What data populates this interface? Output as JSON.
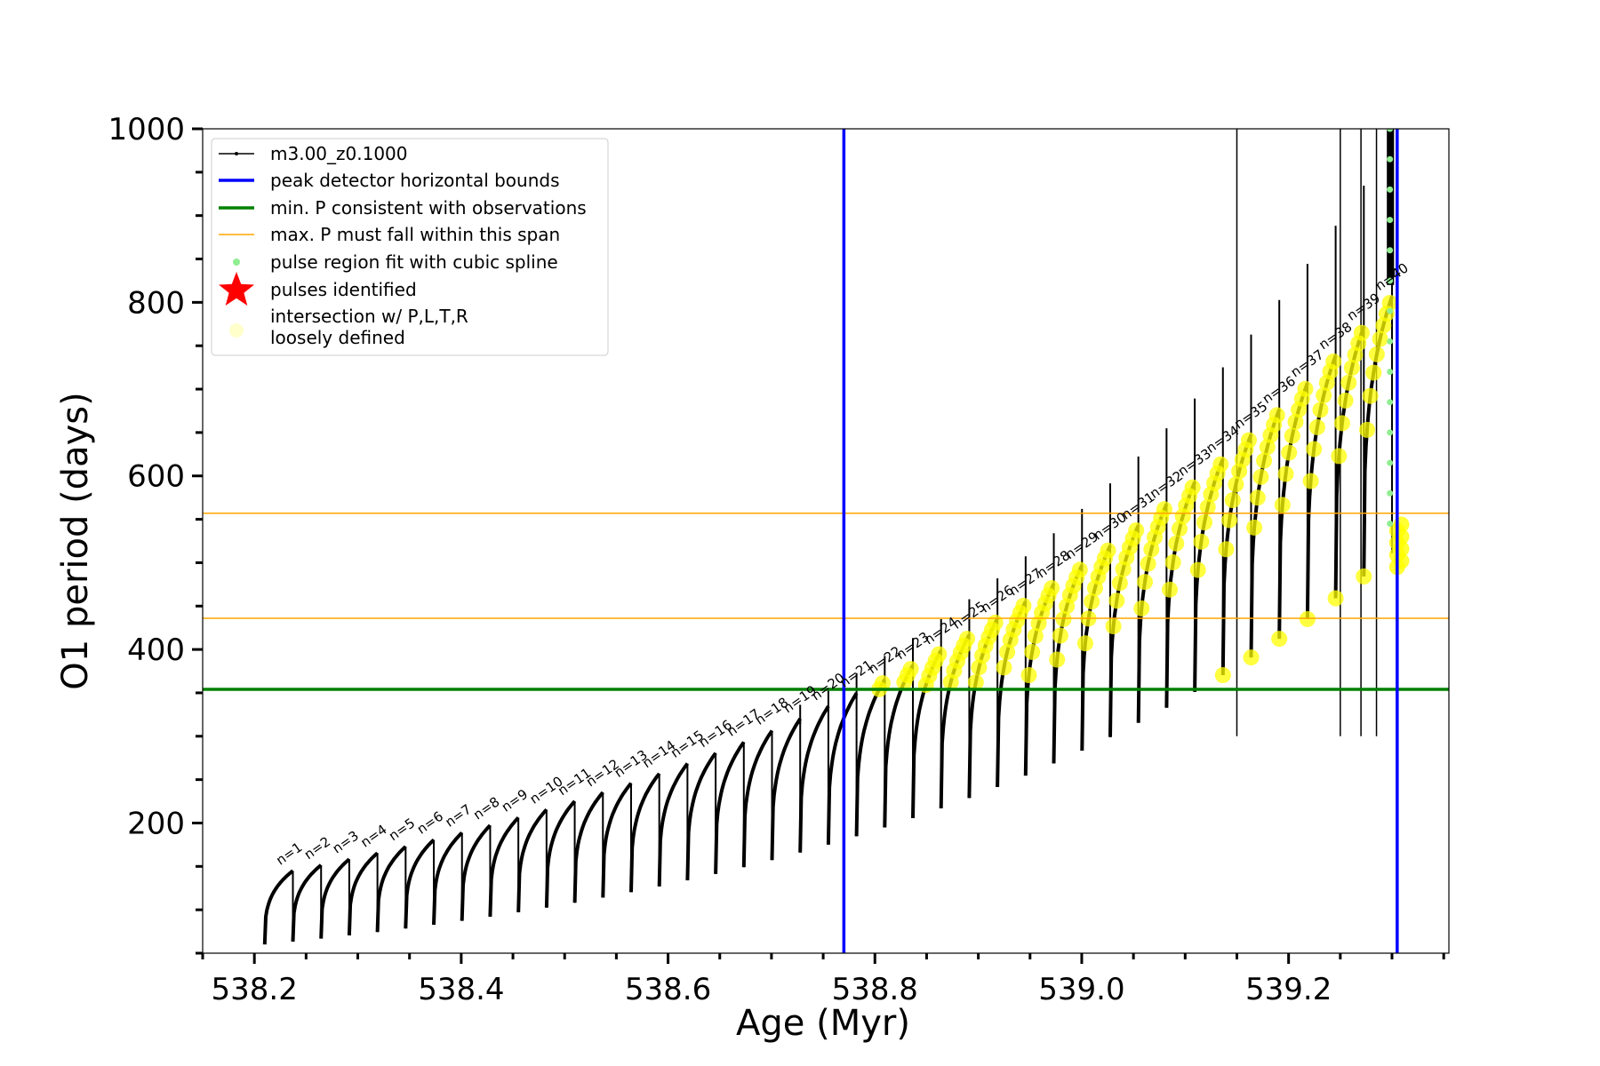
{
  "chart_data": {
    "type": "line",
    "title": "",
    "xlabel": "Age (Myr)",
    "ylabel": "O1 period (days)",
    "xlim": [
      538.15,
      539.355
    ],
    "ylim": [
      50,
      1000
    ],
    "xticks_major": [
      538.2,
      538.4,
      538.6,
      538.8,
      539.0,
      539.2
    ],
    "xtick_labels": [
      "538.2",
      "538.4",
      "538.6",
      "538.8",
      "539.0",
      "539.2"
    ],
    "yticks_major": [
      200,
      400,
      600,
      800,
      1000
    ],
    "ytick_labels": [
      "200",
      "400",
      "600",
      "800",
      "1000"
    ],
    "grid": false,
    "legend_position": "top-left",
    "legend": [
      {
        "label": "m3.00_z0.1000",
        "style": "line-marker",
        "color": "#000000"
      },
      {
        "label": "peak detector horizontal bounds",
        "style": "thick-line",
        "color": "#0000ff"
      },
      {
        "label": "min. P consistent with observations",
        "style": "thick-line",
        "color": "#008000"
      },
      {
        "label": "max. P must fall within this span",
        "style": "thin-line",
        "color": "#ffa500"
      },
      {
        "label": "pulse region fit with cubic spline",
        "style": "dot",
        "color": "#90ee90"
      },
      {
        "label": "pulses identified",
        "style": "star",
        "color": "#ff0000"
      },
      {
        "label": "intersection w/ P,L,T,R",
        "label2": "loosely defined",
        "style": "circle",
        "color": "#ffffcc"
      }
    ],
    "vertical_lines": [
      {
        "x": 538.77,
        "color": "#0000ff"
      },
      {
        "x": 539.305,
        "color": "#0000ff"
      }
    ],
    "horizontal_lines": [
      {
        "y": 354,
        "color": "#008000"
      },
      {
        "y": 436,
        "color": "#ffa500"
      },
      {
        "y": 557,
        "color": "#ffa500"
      }
    ],
    "pulses": {
      "count": 40,
      "start_age": 538.21,
      "end_age": 539.3,
      "labels": [
        "n=1",
        "n=2",
        "n=3",
        "n=4",
        "n=5",
        "n=6",
        "n=7",
        "n=8",
        "n=9",
        "n=10",
        "n=11",
        "n=12",
        "n=13",
        "n=14",
        "n=15",
        "n=16",
        "n=17",
        "n=18",
        "n=19",
        "n=20",
        "n=21",
        "n=22",
        "n=23",
        "n=24",
        "n=25",
        "n=26",
        "n=27",
        "n=28",
        "n=29",
        "n=30",
        "n=31",
        "n=32",
        "n=33",
        "n=34",
        "n=35",
        "n=36",
        "n=37",
        "n=38",
        "n=39",
        "n=40"
      ],
      "trough_start": 60,
      "peak_start": 145,
      "series_color": "#000000"
    },
    "intersection_color": "#ffff00",
    "spline_color": "#90ee90"
  }
}
